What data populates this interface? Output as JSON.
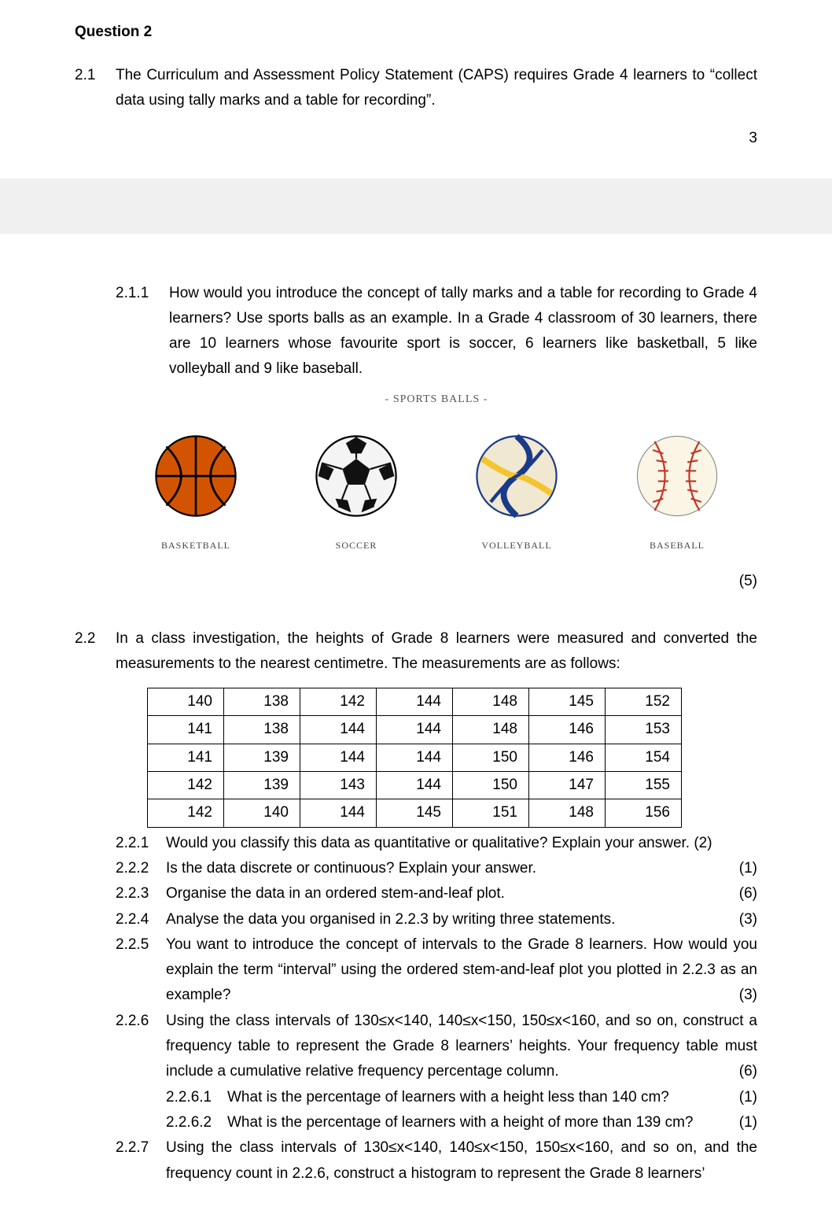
{
  "header": {
    "title": "Question 2",
    "pageNumber": "3"
  },
  "q21": {
    "number": "2.1",
    "text": "The Curriculum and Assessment Policy Statement (CAPS) requires Grade 4 learners to “collect data using tally marks and a table for recording”."
  },
  "q211": {
    "number": "2.1.1",
    "text": "How would you introduce the concept of tally marks and a table for recording to Grade 4 learners? Use sports balls as an example. In a Grade 4 classroom of 30 learners, there are 10 learners whose favourite sport is soccer, 6 learners like basketball, 5 like volleyball and 9 like baseball.",
    "imageTitle": "-  SPORTS BALLS  -",
    "balls": [
      {
        "label": "BASKETBALL"
      },
      {
        "label": "SOCCER"
      },
      {
        "label": "VOLLEYBALL"
      },
      {
        "label": "BASEBALL"
      }
    ],
    "marks": "(5)"
  },
  "q22": {
    "number": "2.2",
    "text": "In a class investigation, the heights of Grade 8 learners were measured and converted the measurements to the nearest centimetre. The measurements are as follows:",
    "table": {
      "rows": [
        [
          "140",
          "138",
          "142",
          "144",
          "148",
          "145",
          "152"
        ],
        [
          "141",
          "138",
          "144",
          "144",
          "148",
          "146",
          "153"
        ],
        [
          "141",
          "139",
          "144",
          "144",
          "150",
          "146",
          "154"
        ],
        [
          "142",
          "139",
          "143",
          "144",
          "150",
          "147",
          "155"
        ],
        [
          "142",
          "140",
          "144",
          "145",
          "151",
          "148",
          "156"
        ]
      ]
    }
  },
  "subs": {
    "q221": {
      "n": "2.2.1",
      "t": "Would you classify this data as quantitative or qualitative? Explain your answer. (2)"
    },
    "q222": {
      "n": "2.2.2",
      "t": "Is the data discrete or continuous? Explain your answer.",
      "m": "(1)"
    },
    "q223": {
      "n": "2.2.3",
      "t": "Organise the data in an ordered stem-and-leaf plot.",
      "m": "(6)"
    },
    "q224": {
      "n": "2.2.4",
      "t": "Analyse the data you organised in 2.2.3 by writing three statements.",
      "m": "(3)"
    },
    "q225": {
      "n": "2.2.5",
      "t": "You want to introduce the concept of intervals to the Grade 8 learners. How would you explain the term “interval” using the ordered stem-and-leaf plot you plotted in 2.2.3 as an example?",
      "m": "(3)"
    },
    "q226": {
      "n": "2.2.6",
      "t": "Using the class intervals of 130≤x<140, 140≤x<150, 150≤x<160, and so on, construct a frequency table to represent the Grade 8 learners’ heights. Your frequency table must include a cumulative relative frequency percentage column.",
      "m": "(6)"
    },
    "q2261": {
      "n": "2.2.6.1",
      "t": "What is the percentage of learners with a height less than 140 cm?",
      "m": "(1)"
    },
    "q2262": {
      "n": "2.2.6.2",
      "t": "What is the percentage of learners with a height of more than 139 cm?",
      "m": "(1)"
    },
    "q227": {
      "n": "2.2.7",
      "t": "Using the class intervals of 130≤x<140, 140≤x<150, 150≤x<160, and so on, and the frequency count in 2.2.6, construct a histogram to represent the Grade 8 learners’"
    }
  }
}
